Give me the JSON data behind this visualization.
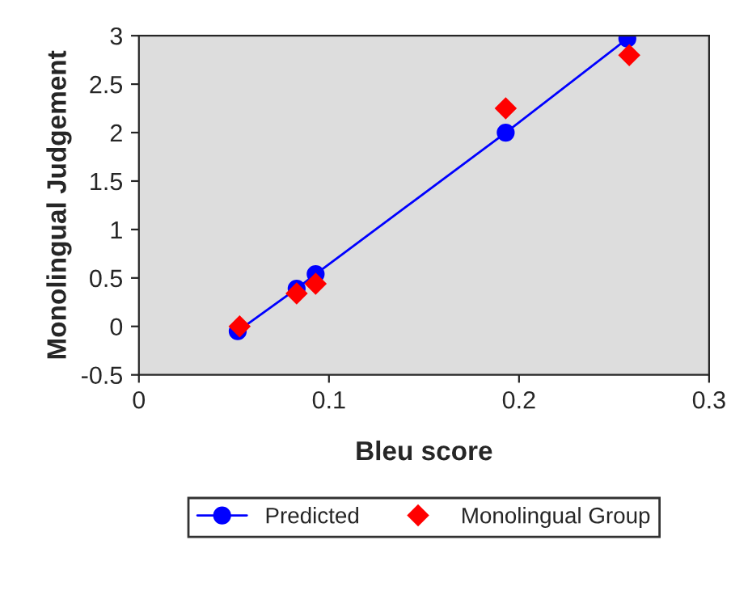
{
  "chart_data": {
    "type": "line",
    "xlabel": "Bleu score",
    "ylabel": "Monolingual Judgement",
    "xlim": [
      0,
      0.3
    ],
    "xticks": [
      0,
      0.1,
      0.2,
      0.3
    ],
    "ylim": [
      -0.5,
      3
    ],
    "yticks": [
      -0.5,
      0,
      0.5,
      1,
      1.5,
      2,
      2.5,
      3
    ],
    "grid": false,
    "legend": "bottom",
    "series": [
      {
        "name": "Predicted",
        "marker": "circle",
        "color": "#0000ff",
        "x": [
          0.052,
          0.083,
          0.093,
          0.193,
          0.257
        ],
        "values": [
          -0.05,
          0.39,
          0.54,
          2.0,
          2.97
        ]
      },
      {
        "name": "Monolingual Group",
        "type": "scatter",
        "marker": "diamond",
        "color": "#ff0000",
        "x": [
          0.053,
          0.083,
          0.093,
          0.193,
          0.258
        ],
        "values": [
          0.0,
          0.34,
          0.44,
          2.25,
          2.8
        ]
      }
    ]
  }
}
